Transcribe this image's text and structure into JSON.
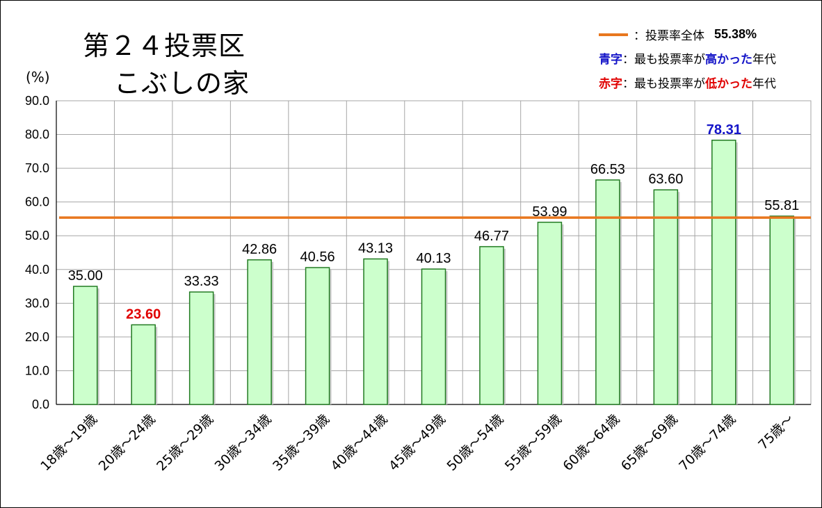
{
  "title_lines": [
    "第２４投票区",
    "こぶしの家"
  ],
  "y_unit": "(%)",
  "legend": {
    "line_suffix": "：投票率全体",
    "overall_value": "55.38%",
    "high_key": "青字",
    "high_pre": "：最も投票率が",
    "high_emph": "高かった",
    "high_post": "年代",
    "low_key": "赤字",
    "low_pre": "：最も投票率が",
    "low_emph": "低かった",
    "low_post": "年代"
  },
  "colors": {
    "bar_fill": "#ccffcc",
    "bar_stroke": "#217a21",
    "overall_line": "#e8771e",
    "high": "#1414c8",
    "low": "#e00000",
    "grid": "#a6a6a6"
  },
  "chart_data": {
    "type": "bar",
    "categories": [
      "18歳～19歳",
      "20歳～24歳",
      "25歳～29歳",
      "30歳～34歳",
      "35歳～39歳",
      "40歳～44歳",
      "45歳～49歳",
      "50歳～54歳",
      "55歳～59歳",
      "60歳～64歳",
      "65歳～69歳",
      "70歳～74歳",
      "75歳～"
    ],
    "values": [
      35.0,
      23.6,
      33.33,
      42.86,
      40.56,
      43.13,
      40.13,
      46.77,
      53.99,
      66.53,
      63.6,
      78.31,
      55.81
    ],
    "value_labels": [
      "35.00",
      "23.60",
      "33.33",
      "42.86",
      "40.56",
      "43.13",
      "40.13",
      "46.77",
      "53.99",
      "66.53",
      "63.60",
      "78.31",
      "55.81"
    ],
    "ylim": [
      0,
      90
    ],
    "yticks": [
      "0.0",
      "10.0",
      "20.0",
      "30.0",
      "40.0",
      "50.0",
      "60.0",
      "70.0",
      "80.0",
      "90.0"
    ],
    "reference_line": 55.38,
    "highest_index": 11,
    "lowest_index": 1,
    "grid": true,
    "legend_position": "top-right"
  }
}
